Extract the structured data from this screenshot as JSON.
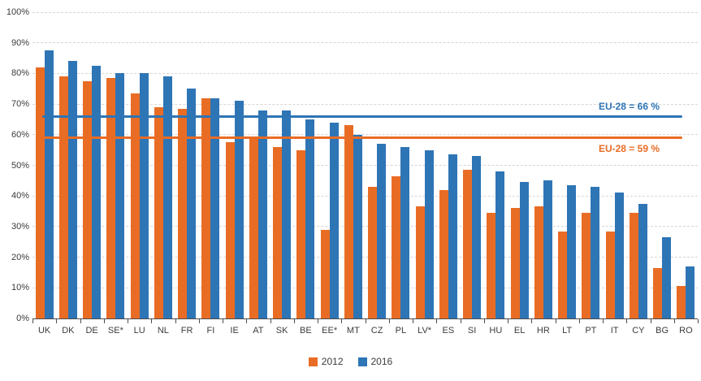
{
  "chart_data": {
    "type": "bar",
    "title": "",
    "xlabel": "",
    "ylabel": "",
    "categories": [
      "UK",
      "DK",
      "DE",
      "SE*",
      "LU",
      "NL",
      "FR",
      "FI",
      "IE",
      "AT",
      "SK",
      "BE",
      "EE*",
      "MT",
      "CZ",
      "PL",
      "LV*",
      "ES",
      "SI",
      "HU",
      "EL",
      "HR",
      "LT",
      "PT",
      "IT",
      "CY",
      "BG",
      "RO"
    ],
    "series": [
      {
        "name": "2012",
        "color": "#e96c24",
        "values": [
          82,
          79,
          77.5,
          78.5,
          73.5,
          69,
          68.5,
          72,
          57.5,
          59.5,
          56,
          55,
          29,
          63,
          43,
          46.5,
          36.5,
          42,
          48.5,
          34.5,
          36,
          36.5,
          28.5,
          34.5,
          28.5,
          34.5,
          16.5,
          10.5
        ]
      },
      {
        "name": "2016",
        "color": "#2e75b6",
        "values": [
          87.5,
          84,
          82.5,
          80,
          80,
          79,
          75,
          72,
          71,
          68,
          68,
          65,
          64,
          60,
          57,
          56,
          55,
          53.5,
          53,
          48,
          44.5,
          45,
          43.5,
          43,
          41,
          37.5,
          26.5,
          17
        ]
      }
    ],
    "ylim": [
      0,
      100
    ],
    "yticks": [
      "0%",
      "10%",
      "20%",
      "30%",
      "40%",
      "50%",
      "60%",
      "70%",
      "80%",
      "90%",
      "100%"
    ],
    "grid": true,
    "legend_position": "bottom",
    "reference_lines": [
      {
        "label": "EU-28 = 66 %",
        "value": 66,
        "color": "#2e75b6",
        "label_side": "above"
      },
      {
        "label": "EU-28 = 59 %",
        "value": 59,
        "color": "#e96c24",
        "label_side": "below"
      }
    ]
  }
}
